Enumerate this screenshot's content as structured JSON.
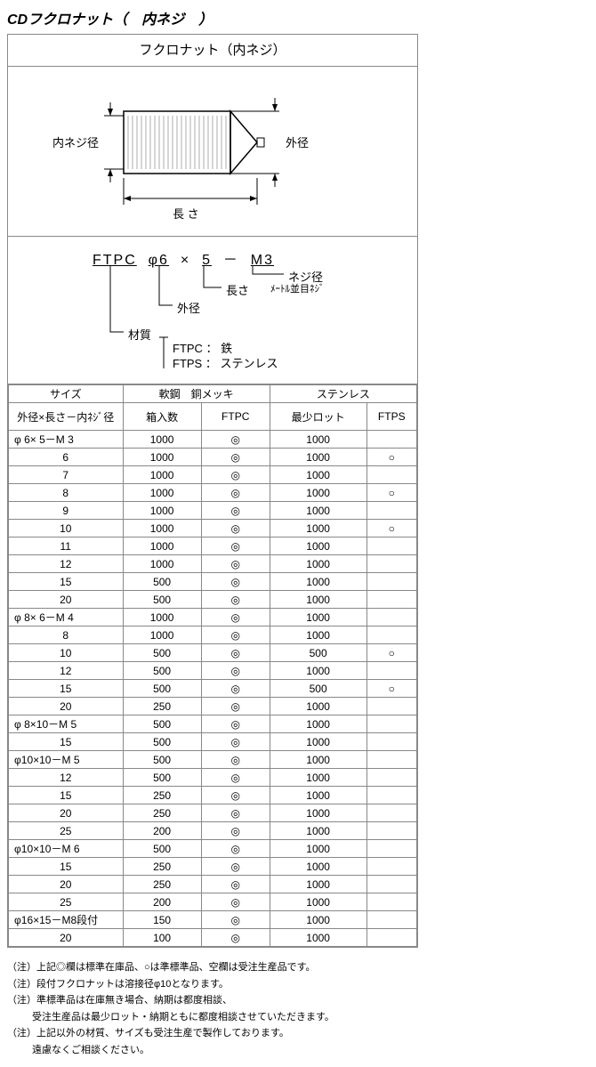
{
  "title": "CDフクロナット（　内ネジ　）",
  "diagram": {
    "header": "フクロナット（内ネジ）",
    "label_inner": "内ネジ径",
    "label_outer": "外径",
    "label_length": "長 さ"
  },
  "code": {
    "line_parts": {
      "p1": "FTPC",
      "p2": "φ6",
      "p3": "×",
      "p4": "5",
      "p5": "－",
      "p6": "M3"
    },
    "lbl_thread": "ネジ径",
    "lbl_thread2": "ﾒｰﾄﾙ並目ﾈｼﾞ",
    "lbl_length": "長さ",
    "lbl_outer": "外径",
    "lbl_material": "材質",
    "mat1": "FTPC ： 鉄",
    "mat2": "FTPS ： ステンレス"
  },
  "table": {
    "head_size": "サイズ",
    "head_soft": "軟鋼　銅メッキ",
    "head_ss": "ステンレス",
    "sub_size": "外径×長さ－内ﾈｼﾞ径",
    "sub_qty": "箱入数",
    "sub_ftpc": "FTPC",
    "sub_lot": "最少ロット",
    "sub_ftps": "FTPS",
    "rows": [
      {
        "size": "φ 6×  5－M 3",
        "qty": "1000",
        "ftpc": "◎",
        "lot": "1000",
        "ftps": ""
      },
      {
        "size": "6",
        "qty": "1000",
        "ftpc": "◎",
        "lot": "1000",
        "ftps": "○"
      },
      {
        "size": "7",
        "qty": "1000",
        "ftpc": "◎",
        "lot": "1000",
        "ftps": ""
      },
      {
        "size": "8",
        "qty": "1000",
        "ftpc": "◎",
        "lot": "1000",
        "ftps": "○"
      },
      {
        "size": "9",
        "qty": "1000",
        "ftpc": "◎",
        "lot": "1000",
        "ftps": ""
      },
      {
        "size": "10",
        "qty": "1000",
        "ftpc": "◎",
        "lot": "1000",
        "ftps": "○"
      },
      {
        "size": "11",
        "qty": "1000",
        "ftpc": "◎",
        "lot": "1000",
        "ftps": ""
      },
      {
        "size": "12",
        "qty": "1000",
        "ftpc": "◎",
        "lot": "1000",
        "ftps": ""
      },
      {
        "size": "15",
        "qty": "500",
        "ftpc": "◎",
        "lot": "1000",
        "ftps": ""
      },
      {
        "size": "20",
        "qty": "500",
        "ftpc": "◎",
        "lot": "1000",
        "ftps": ""
      },
      {
        "size": "φ 8×  6－M 4",
        "qty": "1000",
        "ftpc": "◎",
        "lot": "1000",
        "ftps": ""
      },
      {
        "size": "8",
        "qty": "1000",
        "ftpc": "◎",
        "lot": "1000",
        "ftps": ""
      },
      {
        "size": "10",
        "qty": "500",
        "ftpc": "◎",
        "lot": "500",
        "ftps": "○"
      },
      {
        "size": "12",
        "qty": "500",
        "ftpc": "◎",
        "lot": "1000",
        "ftps": ""
      },
      {
        "size": "15",
        "qty": "500",
        "ftpc": "◎",
        "lot": "500",
        "ftps": "○"
      },
      {
        "size": "20",
        "qty": "250",
        "ftpc": "◎",
        "lot": "1000",
        "ftps": ""
      },
      {
        "size": "φ 8×10－M 5",
        "qty": "500",
        "ftpc": "◎",
        "lot": "1000",
        "ftps": ""
      },
      {
        "size": "15",
        "qty": "500",
        "ftpc": "◎",
        "lot": "1000",
        "ftps": ""
      },
      {
        "size": "φ10×10－M 5",
        "qty": "500",
        "ftpc": "◎",
        "lot": "1000",
        "ftps": ""
      },
      {
        "size": "12",
        "qty": "500",
        "ftpc": "◎",
        "lot": "1000",
        "ftps": ""
      },
      {
        "size": "15",
        "qty": "250",
        "ftpc": "◎",
        "lot": "1000",
        "ftps": ""
      },
      {
        "size": "20",
        "qty": "250",
        "ftpc": "◎",
        "lot": "1000",
        "ftps": ""
      },
      {
        "size": "25",
        "qty": "200",
        "ftpc": "◎",
        "lot": "1000",
        "ftps": ""
      },
      {
        "size": "φ10×10－M 6",
        "qty": "500",
        "ftpc": "◎",
        "lot": "1000",
        "ftps": ""
      },
      {
        "size": "15",
        "qty": "250",
        "ftpc": "◎",
        "lot": "1000",
        "ftps": ""
      },
      {
        "size": "20",
        "qty": "250",
        "ftpc": "◎",
        "lot": "1000",
        "ftps": ""
      },
      {
        "size": "25",
        "qty": "200",
        "ftpc": "◎",
        "lot": "1000",
        "ftps": ""
      },
      {
        "size": "φ16×15－M8段付",
        "qty": "150",
        "ftpc": "◎",
        "lot": "1000",
        "ftps": ""
      },
      {
        "size": "20",
        "qty": "100",
        "ftpc": "◎",
        "lot": "1000",
        "ftps": ""
      }
    ]
  },
  "notes": {
    "n1": "（注）上記◎欄は標準在庫品、○は準標準品、空欄は受注生産品です。",
    "n2": "（注）段付フクロナットは溶接径φ10となります。",
    "n3": "（注）準標準品は在庫無き場合、納期は都度相談、",
    "n3b": "受注生産品は最少ロット・納期ともに都度相談させていただきます。",
    "n4": "（注）上記以外の材質、サイズも受注生産で製作しております。",
    "n4b": "遠慮なくご相談ください。"
  }
}
